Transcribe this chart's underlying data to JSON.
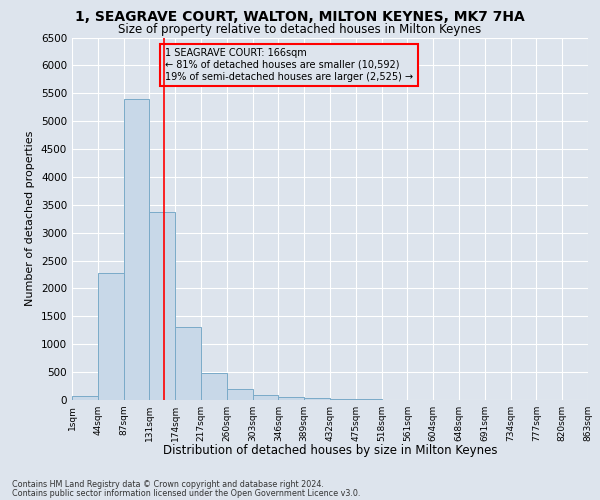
{
  "title1": "1, SEAGRAVE COURT, WALTON, MILTON KEYNES, MK7 7HA",
  "title2": "Size of property relative to detached houses in Milton Keynes",
  "xlabel": "Distribution of detached houses by size in Milton Keynes",
  "ylabel": "Number of detached properties",
  "footer1": "Contains HM Land Registry data © Crown copyright and database right 2024.",
  "footer2": "Contains public sector information licensed under the Open Government Licence v3.0.",
  "bar_heights": [
    75,
    2280,
    5400,
    3380,
    1310,
    480,
    190,
    90,
    55,
    35,
    20,
    10,
    8,
    5,
    4,
    3,
    2,
    2,
    1,
    1
  ],
  "bar_color": "#c8d8e8",
  "bar_edge_color": "#7aaac8",
  "tick_labels": [
    "1sqm",
    "44sqm",
    "87sqm",
    "131sqm",
    "174sqm",
    "217sqm",
    "260sqm",
    "303sqm",
    "346sqm",
    "389sqm",
    "432sqm",
    "475sqm",
    "518sqm",
    "561sqm",
    "604sqm",
    "648sqm",
    "691sqm",
    "734sqm",
    "777sqm",
    "820sqm",
    "863sqm"
  ],
  "ylim": [
    0,
    6500
  ],
  "yticks": [
    0,
    500,
    1000,
    1500,
    2000,
    2500,
    3000,
    3500,
    4000,
    4500,
    5000,
    5500,
    6000,
    6500
  ],
  "red_line_index": 3.55,
  "annotation_title": "1 SEAGRAVE COURT: 166sqm",
  "annotation_line1": "← 81% of detached houses are smaller (10,592)",
  "annotation_line2": "19% of semi-detached houses are larger (2,525) →",
  "bg_color": "#dde4ed",
  "grid_color": "#ffffff",
  "title1_fontsize": 10,
  "title2_fontsize": 8.5,
  "xlabel_fontsize": 8.5,
  "ylabel_fontsize": 8
}
